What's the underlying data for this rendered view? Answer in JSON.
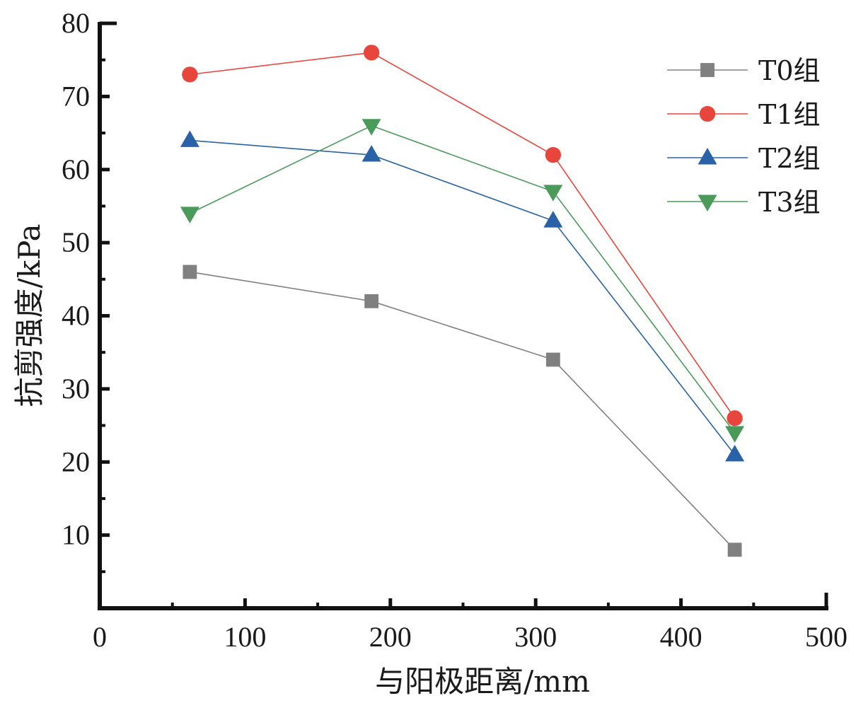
{
  "chart_data": {
    "type": "line",
    "title": "",
    "xlabel": "与阳极距离/mm",
    "ylabel": "抗剪强度/kPa",
    "xlim": [
      0,
      500
    ],
    "ylim": [
      0,
      80
    ],
    "x_ticks": [
      0,
      100,
      200,
      300,
      400,
      500
    ],
    "x_tick_labels": [
      "0",
      "100",
      "200",
      "300",
      "400",
      "500"
    ],
    "y_ticks": [
      10,
      20,
      30,
      40,
      50,
      60,
      70,
      80
    ],
    "y_tick_labels": [
      "10",
      "20",
      "30",
      "40",
      "50",
      "60",
      "70",
      "80"
    ],
    "grid": false,
    "legend_position": "top-right",
    "x": [
      62,
      187,
      312,
      437
    ],
    "series": [
      {
        "name": "T0组",
        "marker": "square",
        "color": "#808080",
        "values": [
          46,
          42,
          34,
          8
        ]
      },
      {
        "name": "T1组",
        "marker": "circle",
        "color": "#e8453c",
        "values": [
          73,
          76,
          62,
          26
        ]
      },
      {
        "name": "T2组",
        "marker": "triangle-up",
        "color": "#2a62a8",
        "values": [
          64,
          62,
          53,
          21
        ]
      },
      {
        "name": "T3组",
        "marker": "triangle-down",
        "color": "#4a9a5a",
        "values": [
          54,
          66,
          57,
          24
        ]
      }
    ]
  }
}
